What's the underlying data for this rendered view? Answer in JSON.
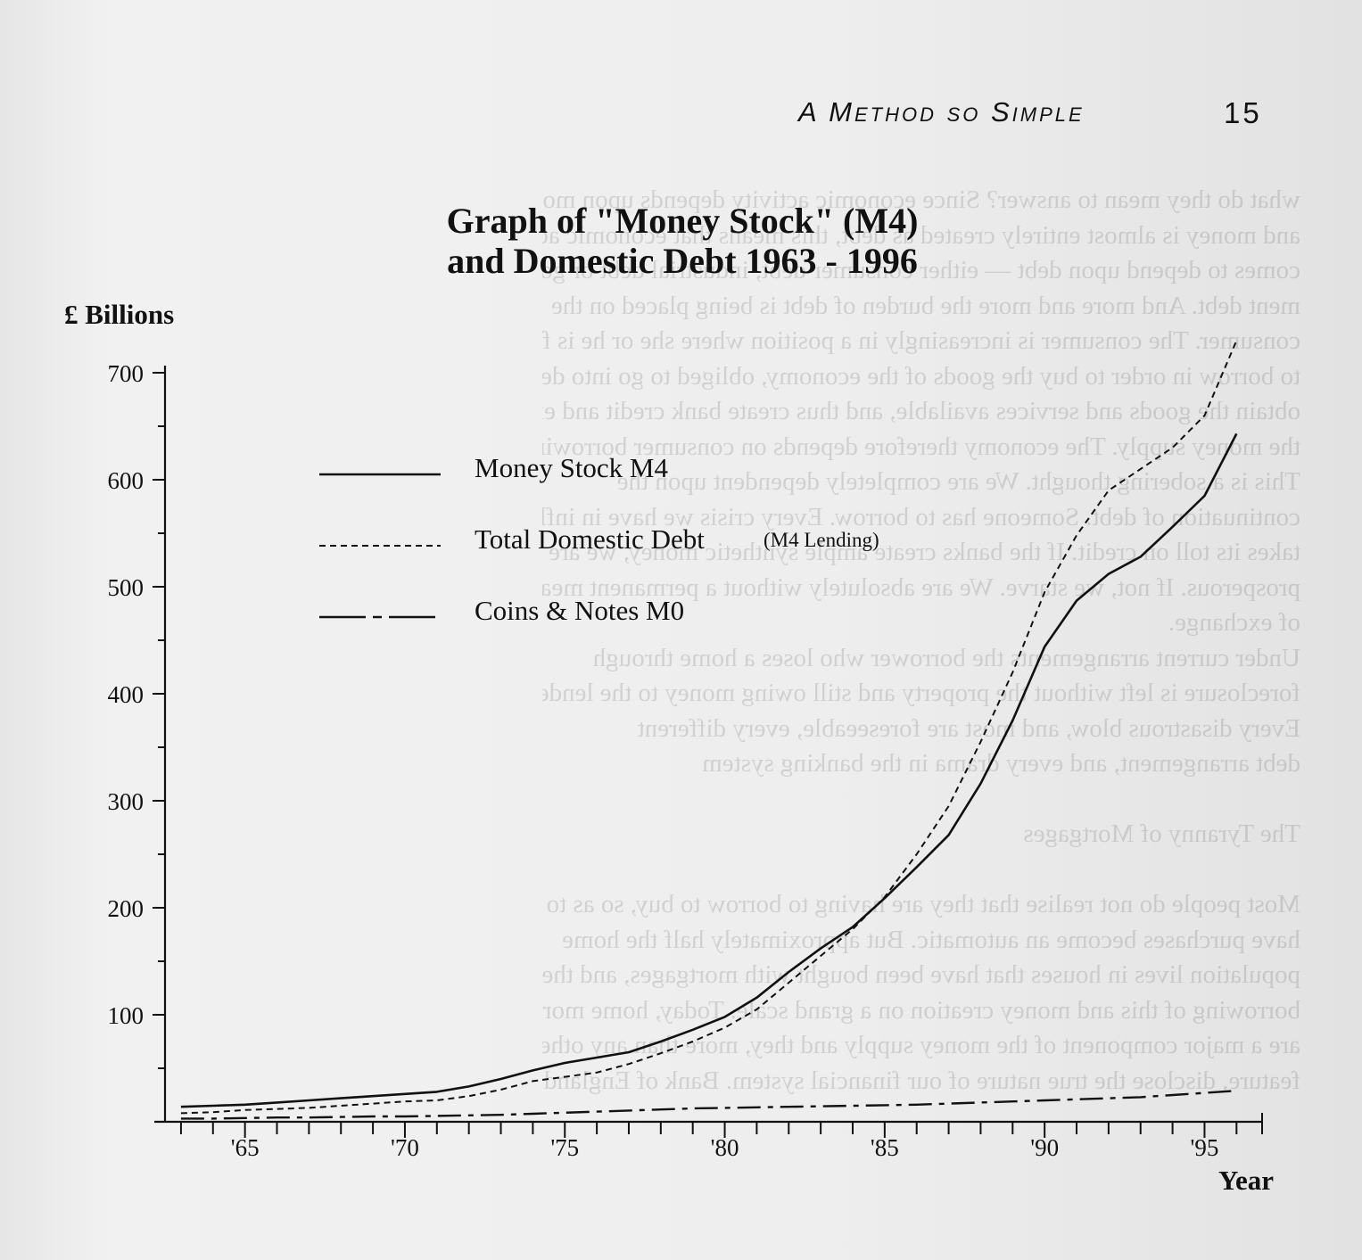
{
  "page": {
    "running_head": "A Method so Simple",
    "page_number": "15",
    "bleed_through_lines": [
      "what do they mean to answer? Since economic activity depends upon money",
      "and money is almost entirely created as debt, this means that economic activity",
      "comes to depend upon debt — either consumer debt, industrial debt or govern-",
      "ment debt. And more and more the burden of debt is being placed on the",
      "consumer. The consumer is increasingly in a position where she or he is forced",
      "to borrow in order to buy the goods of the economy, obliged to go into debt to",
      "obtain the goods and services available, and thus create bank credit and expand",
      "the money supply. The economy therefore depends on consumer borrowing.",
      "This is a sobering thought. We are completely dependent upon the",
      "continuation of debt. Someone has to borrow. Every crisis we have in inflation",
      "takes its toll on credit. If the banks create ample synthetic money, we are",
      "prosperous. If not, we starve. We are absolutely without a permanent means",
      "of exchange.",
      "Under current arrangements the borrower who loses a home through",
      "foreclosure is left without the property and still owing money to the lender.",
      "Every disastrous blow, and most are foreseeable, every different",
      "debt arrangement, and every drama in the banking system",
      "",
      "The Tyranny of Mortgages",
      "",
      "Most people do not realise that they are having to borrow to buy, so as to",
      "have purchases become an automatic. But approximately half the home",
      "population lives in houses that have been bought with mortgages, and the",
      "borrowing of this and money creation on a grand scale. Today, home mortgages",
      "are a major component of the money supply and they, more than any other",
      "feature, disclose the true nature of our financial system. Bank of England statistics"
    ]
  },
  "chart_data": {
    "type": "line",
    "title": [
      "Graph of \"Money Stock\" (M4)",
      "and Domestic Debt  1963 - 1996"
    ],
    "ylabel": "£ Billions",
    "xlabel": "Year",
    "xlim": [
      1962.5,
      1996.8
    ],
    "ylim": [
      0,
      700
    ],
    "yticks": [
      100,
      200,
      300,
      400,
      500,
      600,
      700
    ],
    "ytick_labels": [
      "100",
      "200",
      "300",
      "400",
      "500",
      "600",
      "700"
    ],
    "xticks": [
      1965,
      1970,
      1975,
      1980,
      1985,
      1990,
      1995
    ],
    "xtick_labels": [
      "'65",
      "'70",
      "'75",
      "'80",
      "'85",
      "'90",
      "'95"
    ],
    "x_minor_start": 1963,
    "x_minor_end": 1996,
    "legend": {
      "entries": [
        {
          "label": "Money Stock M4",
          "note": "",
          "style": "solid"
        },
        {
          "label": "Total Domestic Debt",
          "note": "(M4 Lending)",
          "style": "dashed"
        },
        {
          "label": "Coins & Notes M0",
          "note": "",
          "style": "dashdot"
        }
      ],
      "placement": "upper-left"
    },
    "series": [
      {
        "name": "Money Stock M4",
        "style": "solid",
        "x": [
          1963,
          1964,
          1965,
          1966,
          1967,
          1968,
          1969,
          1970,
          1971,
          1972,
          1973,
          1974,
          1975,
          1976,
          1977,
          1978,
          1979,
          1980,
          1981,
          1982,
          1983,
          1984,
          1985,
          1986,
          1987,
          1988,
          1989,
          1990,
          1991,
          1992,
          1993,
          1994,
          1995,
          1996
        ],
        "values": [
          14,
          15,
          16,
          18,
          20,
          22,
          24,
          26,
          28,
          33,
          40,
          48,
          55,
          60,
          65,
          75,
          86,
          98,
          116,
          140,
          162,
          182,
          209,
          238,
          268,
          316,
          375,
          444,
          487,
          512,
          528,
          556,
          585,
          643
        ]
      },
      {
        "name": "Total Domestic Debt",
        "style": "dashed",
        "x": [
          1963,
          1964,
          1965,
          1966,
          1967,
          1968,
          1969,
          1970,
          1971,
          1972,
          1973,
          1974,
          1975,
          1976,
          1977,
          1978,
          1979,
          1980,
          1981,
          1982,
          1983,
          1984,
          1985,
          1986,
          1987,
          1988,
          1989,
          1990,
          1991,
          1992,
          1993,
          1994,
          1995,
          1996
        ],
        "values": [
          8,
          9,
          11,
          12,
          13,
          15,
          17,
          19,
          20,
          24,
          30,
          38,
          42,
          46,
          54,
          64,
          75,
          88,
          105,
          130,
          155,
          180,
          210,
          250,
          295,
          355,
          420,
          495,
          548,
          590,
          610,
          630,
          660,
          730
        ]
      },
      {
        "name": "Coins & Notes M0",
        "style": "dashdot",
        "x": [
          1963,
          1964,
          1965,
          1966,
          1967,
          1968,
          1969,
          1970,
          1971,
          1972,
          1973,
          1974,
          1975,
          1976,
          1977,
          1978,
          1979,
          1980,
          1981,
          1982,
          1983,
          1984,
          1985,
          1986,
          1987,
          1988,
          1989,
          1990,
          1991,
          1992,
          1993,
          1994,
          1995,
          1996
        ],
        "values": [
          3,
          3,
          3.5,
          4,
          4,
          4.5,
          5,
          5,
          5.5,
          6,
          6.5,
          7.5,
          8.5,
          9.5,
          10.5,
          11.5,
          12.5,
          13,
          13.5,
          14,
          14.5,
          15,
          15.5,
          16,
          17,
          18,
          19,
          20,
          21,
          22,
          23,
          25,
          27,
          29
        ]
      }
    ]
  }
}
